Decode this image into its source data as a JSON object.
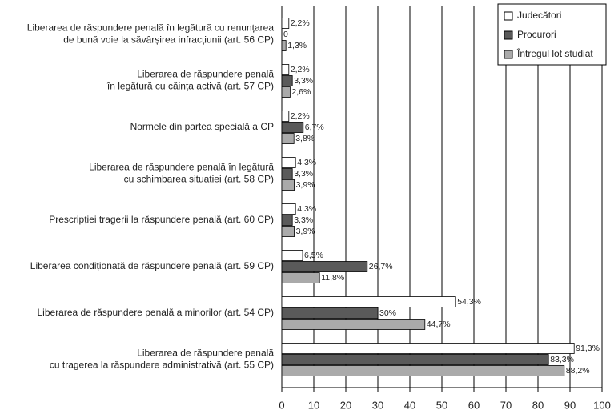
{
  "chart_data": {
    "type": "barh",
    "categories": [
      "Liberarea de răspundere penală în legătură cu renunțarea\nde bună voie la săvârșirea infracțiunii (art. 56 CP)",
      "Liberarea de răspundere penală\nîn legătură cu căința activă (art. 57 CP)",
      "Normele din partea specială a CP",
      "Liberarea de răspundere penală în legătură\ncu schimbarea situației (art. 58 CP)",
      "Prescripției tragerii la răspundere penală (art. 60 CP)",
      "Liberarea condiționată de răspundere penală (art. 59 CP)",
      "Liberarea de răspundere penală a minorilor (art. 54 CP)",
      "Liberarea de răspundere penală\ncu tragerea  la răspundere administrativă (art. 55 CP)"
    ],
    "series": [
      {
        "name": "Judecători",
        "color": "#ffffff",
        "values": [
          2.2,
          2.2,
          2.2,
          4.3,
          4.3,
          6.5,
          54.3,
          91.3
        ],
        "value_labels": [
          "2,2%",
          "2,2%",
          "2,2%",
          "4,3%",
          "4,3%",
          "6,5%",
          "54,3%",
          "91,3%"
        ]
      },
      {
        "name": "Procurori",
        "color": "#5a5a5a",
        "values": [
          0,
          3.3,
          6.7,
          3.3,
          3.3,
          26.7,
          30,
          83.3
        ],
        "value_labels": [
          "0",
          "3,3%",
          "6,7%",
          "3,3%",
          "3,3%",
          "26,7%",
          "30%",
          "83,3%"
        ]
      },
      {
        "name": "Întregul lot studiat",
        "color": "#aaaaaa",
        "values": [
          1.3,
          2.6,
          3.8,
          3.9,
          3.9,
          11.8,
          44.7,
          88.2
        ],
        "value_labels": [
          "1,3%",
          "2,6%",
          "3,8%",
          "3,9%",
          "3,9%",
          "11,8%",
          "44,7%",
          "88,2%"
        ]
      }
    ],
    "xlim": [
      0,
      100
    ],
    "xticks": [
      0,
      10,
      20,
      30,
      40,
      50,
      60,
      70,
      80,
      90,
      100
    ],
    "grid": true,
    "legend": "upper right"
  }
}
